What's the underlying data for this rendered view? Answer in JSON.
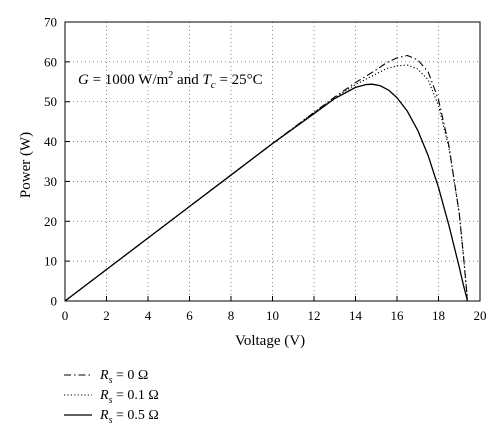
{
  "chart_data": {
    "type": "line",
    "title": "",
    "annotation": {
      "G": "G",
      "eq1": " = 1000 W/m",
      "sup2": "2",
      "and": " and ",
      "T": "T",
      "c": "c",
      "eq2": " = 25°C"
    },
    "xlabel": "Voltage (V)",
    "ylabel": "Power (W)",
    "xlim": [
      0,
      20
    ],
    "ylim": [
      0,
      70
    ],
    "xticks": [
      0,
      2,
      4,
      6,
      8,
      10,
      12,
      14,
      16,
      18,
      20
    ],
    "yticks": [
      0,
      10,
      20,
      30,
      40,
      50,
      60,
      70
    ],
    "grid": true,
    "legend_position": "below-left",
    "series": [
      {
        "name_R": "R",
        "name_s": "s",
        "name_rest": " = 0 Ω",
        "style": "dashdot",
        "x": [
          0,
          2,
          4,
          6,
          8,
          10,
          12,
          13,
          14,
          15,
          15.5,
          16,
          16.5,
          17,
          17.5,
          18,
          18.5,
          19,
          19.2,
          19.4
        ],
        "y": [
          0,
          7.9,
          15.8,
          23.7,
          31.6,
          39.5,
          47.3,
          51.2,
          54.8,
          58.0,
          59.8,
          61.0,
          61.6,
          60.5,
          57.5,
          50.5,
          39.0,
          22.0,
          11.5,
          0
        ]
      },
      {
        "name_R": "R",
        "name_s": "s",
        "name_rest": " = 0.1 Ω",
        "style": "dotted",
        "x": [
          0,
          2,
          4,
          6,
          8,
          10,
          12,
          13,
          14,
          15,
          15.5,
          16,
          16.5,
          17,
          17.5,
          18,
          18.5,
          19,
          19.2,
          19.4
        ],
        "y": [
          0,
          7.9,
          15.8,
          23.7,
          31.6,
          39.5,
          47.3,
          51.0,
          54.3,
          57.0,
          58.3,
          59.0,
          59.2,
          58.2,
          55.5,
          49.0,
          38.5,
          22.0,
          11.5,
          0
        ]
      },
      {
        "name_R": "R",
        "name_s": "s",
        "name_rest": " = 0.5 Ω",
        "style": "solid",
        "x": [
          0,
          2,
          4,
          6,
          8,
          10,
          12,
          13,
          14,
          14.5,
          14.8,
          15.2,
          15.6,
          16,
          16.5,
          17,
          17.5,
          18,
          18.5,
          19,
          19.2,
          19.4
        ],
        "y": [
          0,
          7.9,
          15.8,
          23.7,
          31.6,
          39.5,
          47.0,
          50.8,
          53.6,
          54.3,
          54.4,
          54.0,
          52.9,
          51.0,
          47.6,
          42.8,
          36.5,
          28.5,
          19.0,
          8.5,
          4.0,
          0
        ]
      }
    ]
  }
}
